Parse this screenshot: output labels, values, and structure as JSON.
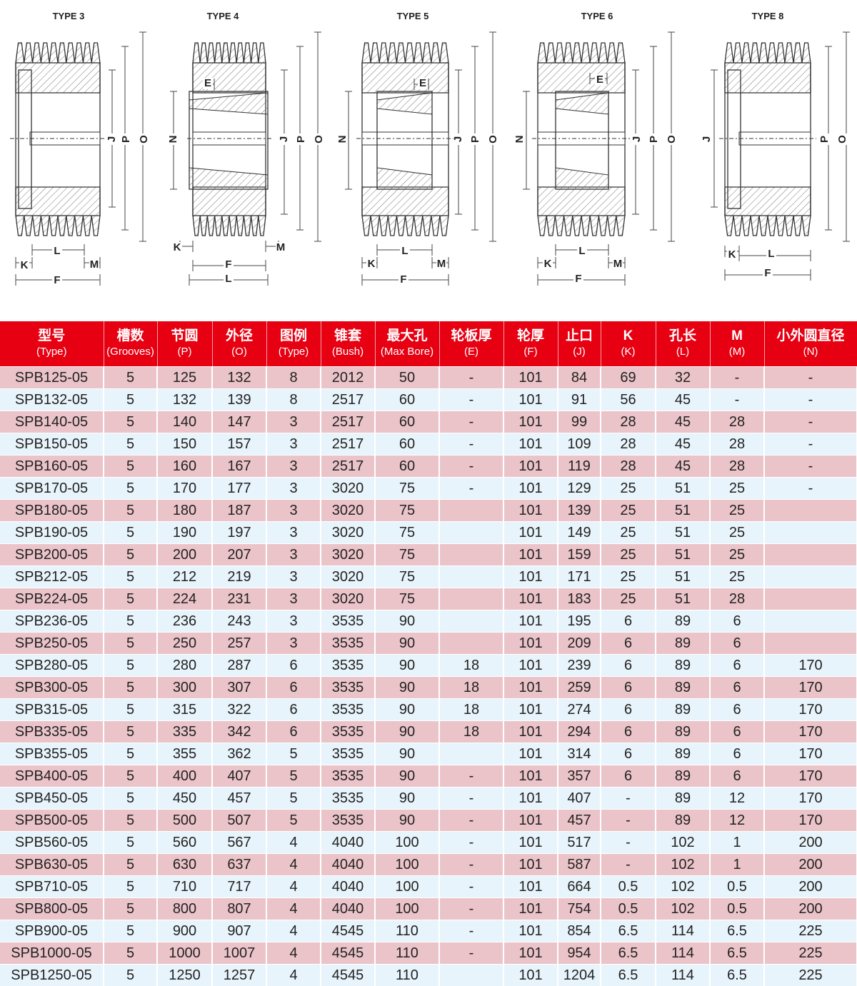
{
  "diagrams": [
    {
      "title": "TYPE 3",
      "labels": {
        "J": "J",
        "P": "P",
        "O": "O",
        "K": "K",
        "L": "L",
        "M": "M",
        "F": "F"
      }
    },
    {
      "title": "TYPE 4",
      "labels": {
        "E": "E",
        "N": "N",
        "J": "J",
        "P": "P",
        "O": "O",
        "K": "K",
        "M": "M",
        "F": "F",
        "L": "L"
      }
    },
    {
      "title": "TYPE 5",
      "labels": {
        "E": "E",
        "N": "N",
        "J": "J",
        "P": "P",
        "O": "O",
        "K": "K",
        "L": "L",
        "M": "M",
        "F": "F"
      }
    },
    {
      "title": "TYPE 6",
      "labels": {
        "E": "E",
        "N": "N",
        "J": "J",
        "P": "P",
        "O": "O",
        "K": "K",
        "L": "L",
        "M": "M",
        "F": "F"
      }
    },
    {
      "title": "TYPE 8",
      "labels": {
        "J": "J",
        "P": "P",
        "O": "O",
        "K": "K",
        "L": "L",
        "F": "F"
      }
    }
  ],
  "colors": {
    "header": "#e60012",
    "row_odd": "#ebc4c9",
    "row_even": "#e8f4fb"
  },
  "table": {
    "headers": [
      {
        "zh": "型号",
        "en": "(Type)"
      },
      {
        "zh": "槽数",
        "en": "(Grooves)"
      },
      {
        "zh": "节圆",
        "en": "(P)"
      },
      {
        "zh": "外径",
        "en": "(O)"
      },
      {
        "zh": "图例",
        "en": "(Type)"
      },
      {
        "zh": "锥套",
        "en": "(Bush)"
      },
      {
        "zh": "最大孔",
        "en": "(Max Bore)"
      },
      {
        "zh": "轮板厚",
        "en": "(E)"
      },
      {
        "zh": "轮厚",
        "en": "(F)"
      },
      {
        "zh": "止口",
        "en": "(J)"
      },
      {
        "zh": "K",
        "en": "(K)"
      },
      {
        "zh": "孔长",
        "en": "(L)"
      },
      {
        "zh": "M",
        "en": "(M)"
      },
      {
        "zh": "小外圆直径",
        "en": "(N)"
      }
    ],
    "rows": [
      [
        "SPB125-05",
        "5",
        "125",
        "132",
        "8",
        "2012",
        "50",
        "-",
        "101",
        "84",
        "69",
        "32",
        "-",
        "-"
      ],
      [
        "SPB132-05",
        "5",
        "132",
        "139",
        "8",
        "2517",
        "60",
        "-",
        "101",
        "91",
        "56",
        "45",
        "-",
        "-"
      ],
      [
        "SPB140-05",
        "5",
        "140",
        "147",
        "3",
        "2517",
        "60",
        "-",
        "101",
        "99",
        "28",
        "45",
        "28",
        "-"
      ],
      [
        "SPB150-05",
        "5",
        "150",
        "157",
        "3",
        "2517",
        "60",
        "-",
        "101",
        "109",
        "28",
        "45",
        "28",
        "-"
      ],
      [
        "SPB160-05",
        "5",
        "160",
        "167",
        "3",
        "2517",
        "60",
        "-",
        "101",
        "119",
        "28",
        "45",
        "28",
        "-"
      ],
      [
        "SPB170-05",
        "5",
        "170",
        "177",
        "3",
        "3020",
        "75",
        "-",
        "101",
        "129",
        "25",
        "51",
        "25",
        "-"
      ],
      [
        "SPB180-05",
        "5",
        "180",
        "187",
        "3",
        "3020",
        "75",
        "",
        "101",
        "139",
        "25",
        "51",
        "25",
        ""
      ],
      [
        "SPB190-05",
        "5",
        "190",
        "197",
        "3",
        "3020",
        "75",
        "",
        "101",
        "149",
        "25",
        "51",
        "25",
        ""
      ],
      [
        "SPB200-05",
        "5",
        "200",
        "207",
        "3",
        "3020",
        "75",
        "",
        "101",
        "159",
        "25",
        "51",
        "25",
        ""
      ],
      [
        "SPB212-05",
        "5",
        "212",
        "219",
        "3",
        "3020",
        "75",
        "",
        "101",
        "171",
        "25",
        "51",
        "25",
        ""
      ],
      [
        "SPB224-05",
        "5",
        "224",
        "231",
        "3",
        "3020",
        "75",
        "",
        "101",
        "183",
        "25",
        "51",
        "28",
        ""
      ],
      [
        "SPB236-05",
        "5",
        "236",
        "243",
        "3",
        "3535",
        "90",
        "",
        "101",
        "195",
        "6",
        "89",
        "6",
        ""
      ],
      [
        "SPB250-05",
        "5",
        "250",
        "257",
        "3",
        "3535",
        "90",
        "",
        "101",
        "209",
        "6",
        "89",
        "6",
        ""
      ],
      [
        "SPB280-05",
        "5",
        "280",
        "287",
        "6",
        "3535",
        "90",
        "18",
        "101",
        "239",
        "6",
        "89",
        "6",
        "170"
      ],
      [
        "SPB300-05",
        "5",
        "300",
        "307",
        "6",
        "3535",
        "90",
        "18",
        "101",
        "259",
        "6",
        "89",
        "6",
        "170"
      ],
      [
        "SPB315-05",
        "5",
        "315",
        "322",
        "6",
        "3535",
        "90",
        "18",
        "101",
        "274",
        "6",
        "89",
        "6",
        "170"
      ],
      [
        "SPB335-05",
        "5",
        "335",
        "342",
        "6",
        "3535",
        "90",
        "18",
        "101",
        "294",
        "6",
        "89",
        "6",
        "170"
      ],
      [
        "SPB355-05",
        "5",
        "355",
        "362",
        "5",
        "3535",
        "90",
        "",
        "101",
        "314",
        "6",
        "89",
        "6",
        "170"
      ],
      [
        "SPB400-05",
        "5",
        "400",
        "407",
        "5",
        "3535",
        "90",
        "-",
        "101",
        "357",
        "6",
        "89",
        "6",
        "170"
      ],
      [
        "SPB450-05",
        "5",
        "450",
        "457",
        "5",
        "3535",
        "90",
        "-",
        "101",
        "407",
        "-",
        "89",
        "12",
        "170"
      ],
      [
        "SPB500-05",
        "5",
        "500",
        "507",
        "5",
        "3535",
        "90",
        "-",
        "101",
        "457",
        "-",
        "89",
        "12",
        "170"
      ],
      [
        "SPB560-05",
        "5",
        "560",
        "567",
        "4",
        "4040",
        "100",
        "-",
        "101",
        "517",
        "-",
        "102",
        "1",
        "200"
      ],
      [
        "SPB630-05",
        "5",
        "630",
        "637",
        "4",
        "4040",
        "100",
        "-",
        "101",
        "587",
        "-",
        "102",
        "1",
        "200"
      ],
      [
        "SPB710-05",
        "5",
        "710",
        "717",
        "4",
        "4040",
        "100",
        "-",
        "101",
        "664",
        "0.5",
        "102",
        "0.5",
        "200"
      ],
      [
        "SPB800-05",
        "5",
        "800",
        "807",
        "4",
        "4040",
        "100",
        "-",
        "101",
        "754",
        "0.5",
        "102",
        "0.5",
        "200"
      ],
      [
        "SPB900-05",
        "5",
        "900",
        "907",
        "4",
        "4545",
        "110",
        "-",
        "101",
        "854",
        "6.5",
        "114",
        "6.5",
        "225"
      ],
      [
        "SPB1000-05",
        "5",
        "1000",
        "1007",
        "4",
        "4545",
        "110",
        "-",
        "101",
        "954",
        "6.5",
        "114",
        "6.5",
        "225"
      ],
      [
        "SPB1250-05",
        "5",
        "1250",
        "1257",
        "4",
        "4545",
        "110",
        "",
        "101",
        "1204",
        "6.5",
        "114",
        "6.5",
        "225"
      ]
    ]
  }
}
